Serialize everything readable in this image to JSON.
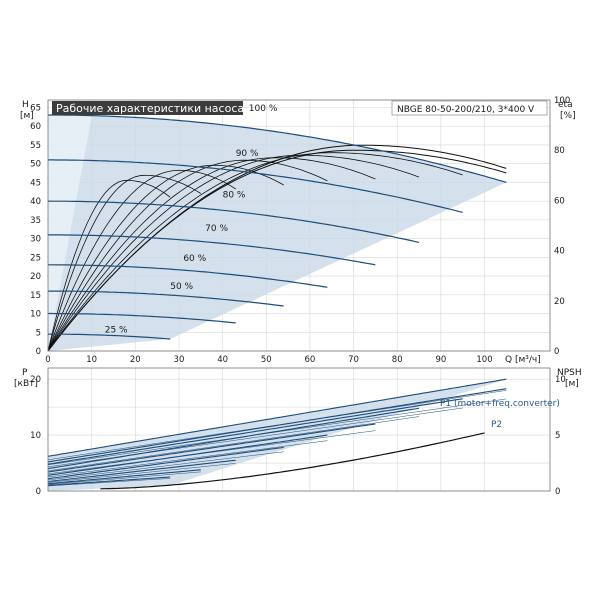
{
  "chart_data": [
    {
      "type": "line",
      "title": "Рабочие характеристики насоса",
      "model": "NBGE 80-50-200/210, 3*400 V",
      "left_axis": {
        "label": "H",
        "unit": "[м]",
        "ticks": [
          0,
          5,
          10,
          15,
          20,
          25,
          30,
          35,
          40,
          45,
          50,
          55,
          60,
          65
        ],
        "range": [
          0,
          67
        ]
      },
      "right_axis": {
        "label": "eta",
        "unit": "[%]",
        "ticks": [
          0,
          20,
          40,
          60,
          80,
          100
        ],
        "range": [
          0,
          100
        ]
      },
      "x_axis": {
        "label": "Q [м³/ч]",
        "ticks": [
          0,
          10,
          20,
          30,
          40,
          50,
          60,
          70,
          80,
          90,
          100
        ],
        "range": [
          0,
          115
        ]
      },
      "head_curves": [
        {
          "name": "100 %",
          "q_max": 105,
          "h0": 63,
          "h_end": 45,
          "label_x": 46,
          "label_y": 64
        },
        {
          "name": "90 %",
          "q_max": 95,
          "h0": 51,
          "h_end": 37,
          "label_x": 43,
          "label_y": 52
        },
        {
          "name": "80 %",
          "q_max": 85,
          "h0": 40,
          "h_end": 29,
          "label_x": 40,
          "label_y": 41
        },
        {
          "name": "70 %",
          "q_max": 75,
          "h0": 31,
          "h_end": 23,
          "label_x": 36,
          "label_y": 32
        },
        {
          "name": "60 %",
          "q_max": 64,
          "h0": 23,
          "h_end": 17,
          "label_x": 31,
          "label_y": 24
        },
        {
          "name": "",
          "q_max": 54,
          "h0": 16,
          "h_end": 12,
          "label_x": 0,
          "label_y": 0
        },
        {
          "name": "",
          "q_max": 43,
          "h0": 10,
          "h_end": 7.5,
          "label_x": 0,
          "label_y": 0
        },
        {
          "name": "25 %",
          "q_max": 28,
          "h0": 4.5,
          "h_end": 3.2,
          "label_x": 13,
          "label_y": 5
        }
      ],
      "extra_labels": [
        {
          "text": "50 %",
          "q": 28,
          "h": 16.5
        }
      ],
      "efficiency_curves": [
        {
          "q_max": 105,
          "peak_q": 72,
          "peak_eta": 82
        },
        {
          "q_max": 105,
          "peak_q": 70,
          "peak_eta": 80
        },
        {
          "q_max": 95,
          "peak_q": 65,
          "peak_eta": 79
        },
        {
          "q_max": 85,
          "peak_q": 58,
          "peak_eta": 78
        },
        {
          "q_max": 75,
          "peak_q": 52,
          "peak_eta": 77
        },
        {
          "q_max": 64,
          "peak_q": 45,
          "peak_eta": 76
        },
        {
          "q_max": 54,
          "peak_q": 38,
          "peak_eta": 74
        },
        {
          "q_max": 43,
          "peak_q": 30,
          "peak_eta": 72
        },
        {
          "q_max": 35,
          "peak_q": 22,
          "peak_eta": 70
        },
        {
          "q_max": 28,
          "peak_q": 18,
          "peak_eta": 68
        }
      ]
    },
    {
      "type": "line",
      "left_axis": {
        "label": "P",
        "unit": "[кВт]",
        "ticks": [
          0,
          10,
          20
        ],
        "range": [
          0,
          22
        ]
      },
      "right_axis": {
        "label": "NPSH",
        "unit": "[м]",
        "ticks": [
          0,
          5,
          10
        ],
        "range": [
          0,
          11
        ]
      },
      "power_series": [
        {
          "name": "P1 (motor+freq.converter)",
          "q_max": 105,
          "p0": 6.2,
          "p_end": 20.0
        },
        {
          "name": "P2",
          "q_max": 105,
          "p0": 5.2,
          "p_end": 18.3
        }
      ],
      "power_curves": [
        {
          "q_max": 95,
          "p0": 4.8,
          "p_end": 16.5
        },
        {
          "q_max": 85,
          "p0": 4.0,
          "p_end": 14.8
        },
        {
          "q_max": 75,
          "p0": 3.4,
          "p_end": 12.0
        },
        {
          "q_max": 64,
          "p0": 2.8,
          "p_end": 10.0
        },
        {
          "q_max": 54,
          "p0": 2.2,
          "p_end": 7.8
        },
        {
          "q_max": 43,
          "p0": 1.7,
          "p_end": 5.5
        },
        {
          "q_max": 35,
          "p0": 1.3,
          "p_end": 3.8
        },
        {
          "q_max": 28,
          "p0": 1.0,
          "p_end": 2.5
        }
      ],
      "npsh_curve": {
        "q_start": 12,
        "npsh_start": 0.2,
        "q_end": 100,
        "npsh_end": 5.2
      }
    }
  ]
}
